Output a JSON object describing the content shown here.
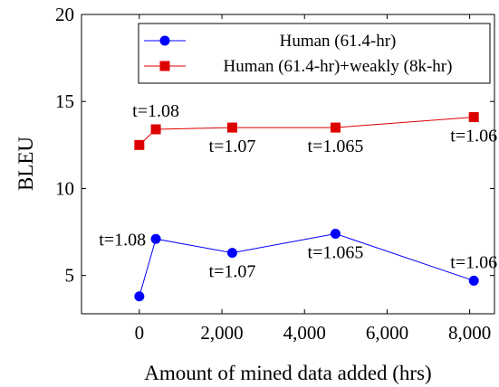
{
  "chart_data": {
    "type": "line",
    "title": "",
    "xlabel": "Amount of mined data added (hrs)",
    "ylabel": "BLEU",
    "xlim": [
      -1400,
      8600
    ],
    "ylim": [
      2.8,
      20
    ],
    "xticks": [
      0,
      2000,
      4000,
      6000,
      8000
    ],
    "xtick_labels": [
      "0",
      "2,000",
      "4,000",
      "6,000",
      "8,000"
    ],
    "yticks": [
      5,
      10,
      15,
      20
    ],
    "ytick_labels": [
      "5",
      "10",
      "15",
      "20"
    ],
    "grid": false,
    "legend_position": "top-right",
    "series": [
      {
        "name": "Human (61.4-hr)",
        "color": "#0000ff",
        "marker": "circle",
        "x": [
          0,
          400,
          2250,
          4750,
          8100
        ],
        "y": [
          3.8,
          7.1,
          6.3,
          7.4,
          4.7
        ]
      },
      {
        "name": "Human (61.4-hr)+weakly (8k-hr)",
        "color": "#dd0000",
        "marker": "square",
        "x": [
          0,
          400,
          2250,
          4750,
          8100
        ],
        "y": [
          12.5,
          13.4,
          13.5,
          13.5,
          14.1
        ]
      }
    ],
    "annotations": [
      {
        "text": "t=1.08",
        "x": 400,
        "y": 13.4,
        "placement": "above"
      },
      {
        "text": "t=1.07",
        "x": 2250,
        "y": 13.5,
        "placement": "below"
      },
      {
        "text": "t=1.065",
        "x": 4750,
        "y": 13.5,
        "placement": "below"
      },
      {
        "text": "t=1.06",
        "x": 8100,
        "y": 14.1,
        "placement": "below"
      },
      {
        "text": "t=1.08",
        "x": 400,
        "y": 7.1,
        "placement": "left"
      },
      {
        "text": "t=1.07",
        "x": 2250,
        "y": 6.3,
        "placement": "below"
      },
      {
        "text": "t=1.065",
        "x": 4750,
        "y": 7.4,
        "placement": "below"
      },
      {
        "text": "t=1.06",
        "x": 8100,
        "y": 4.7,
        "placement": "above"
      }
    ]
  }
}
